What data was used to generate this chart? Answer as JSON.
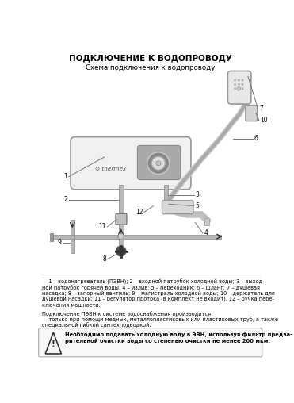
{
  "title": "ПОДКЛЮЧЕНИЕ К ВОДОПРОВОДУ",
  "subtitle": "Схема подключения к водопроводу",
  "bg_color": "#ffffff",
  "text_color": "#000000",
  "line_color": "#777777",
  "pipe_color": "#b8b8b8",
  "pipe_edge": "#888888",
  "device_fill": "#f0f0f0",
  "device_edge": "#999999",
  "legend_lines": [
    "    1 – водонагреватель (ПЭВН); 2 – входной патрубок холодной воды; 3 – выход-",
    "ной патрубок горячей воды; 4 – излив; 5 – переходник; 6 – шланг; 7 – душевая",
    "насадка; 8 – запорный вентиль; 9 – магистраль холодной воды; 10 – держатель для",
    "душевой насадки; 11 – регулятор протока (в комплект не входит), 12 – ручка пере-",
    "ключения мощности."
  ],
  "conn_lines": [
    "Подключение ПЭВН к системе водоснабжения производится",
    "    только при помощи медных, металлопластиковых или пластиковых труб, а также",
    "специальной гибкой сантехподводкой."
  ],
  "warn_lines": [
    "Необходимо подавать холодную воду в ЭВН, используя фильтр предва-",
    "рительной очистки воды со степенью очистки не менее 200 мкм."
  ]
}
